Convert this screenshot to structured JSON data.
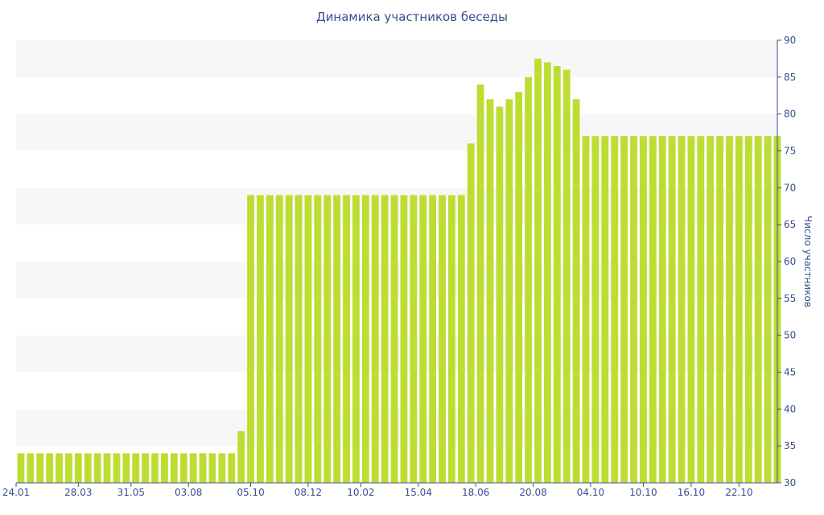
{
  "chart_data": {
    "type": "bar",
    "title": "Динамика участников беседы",
    "ylabel": "Число участников",
    "xlabel": "",
    "ylim": [
      30,
      90
    ],
    "yticks": [
      30,
      35,
      40,
      45,
      50,
      55,
      60,
      65,
      70,
      75,
      80,
      85,
      90
    ],
    "y_axis_side": "right",
    "grid": "alternating horizontal bands",
    "x_tick_labels": [
      {
        "label": "24.01",
        "index": 0
      },
      {
        "label": "28.03",
        "index": 6.5
      },
      {
        "label": "31.05",
        "index": 12
      },
      {
        "label": "03.08",
        "index": 18
      },
      {
        "label": "05.10",
        "index": 24.5
      },
      {
        "label": "08.12",
        "index": 30.5
      },
      {
        "label": "10.02",
        "index": 36
      },
      {
        "label": "15.04",
        "index": 42
      },
      {
        "label": "18.06",
        "index": 48
      },
      {
        "label": "20.08",
        "index": 54
      },
      {
        "label": "04.10",
        "index": 60
      },
      {
        "label": "10.10",
        "index": 65.5
      },
      {
        "label": "16.10",
        "index": 70.5
      },
      {
        "label": "22.10",
        "index": 75.5
      }
    ],
    "values": [
      34,
      34,
      34,
      34,
      34,
      34,
      34,
      34,
      34,
      34,
      34,
      34,
      34,
      34,
      34,
      34,
      34,
      34,
      34,
      34,
      34,
      34,
      34,
      37,
      69,
      69,
      69,
      69,
      69,
      69,
      69,
      69,
      69,
      69,
      69,
      69,
      69,
      69,
      69,
      69,
      69,
      69,
      69,
      69,
      69,
      69,
      69,
      76,
      84,
      82,
      81,
      82,
      83,
      85,
      87.5,
      87,
      86.5,
      86,
      82,
      77,
      77,
      77,
      77,
      77,
      77,
      77,
      77,
      77,
      77,
      77,
      77,
      77,
      77,
      77,
      77,
      77,
      77,
      77,
      77,
      77
    ],
    "bar_color": "#bedd32",
    "band_color": "#f7f7f7",
    "axis_color": "#3a4e8c"
  }
}
